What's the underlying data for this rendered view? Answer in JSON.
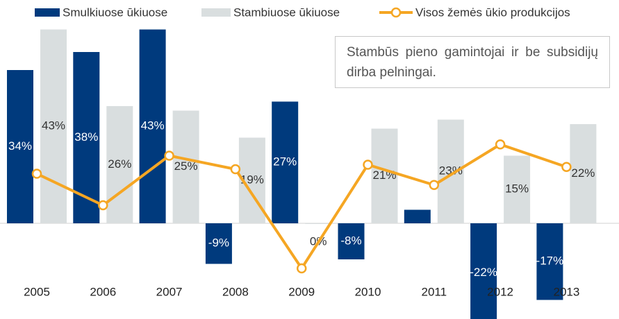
{
  "chart_data": {
    "type": "bar-line",
    "annotation": "Stambūs pieno gamintojai ir be subsidijų dirba pelningai.",
    "categories": [
      "2005",
      "2006",
      "2007",
      "2008",
      "2009",
      "2010",
      "2011",
      "2012",
      "2013"
    ],
    "series": [
      {
        "name": "Smulkiuose ūkiuose",
        "type": "bar",
        "color": "#003a7d",
        "values": [
          34,
          38,
          43,
          -9,
          27,
          -8,
          3,
          -22,
          -17
        ],
        "value_labels": [
          "34%",
          "38%",
          "43%",
          "-9%",
          "27%",
          "-8%",
          null,
          "-22%",
          "-17%"
        ]
      },
      {
        "name": "Stambiuose ūkiuose",
        "type": "bar",
        "color": "#d9dedf",
        "values": [
          43,
          26,
          25,
          19,
          0,
          21,
          23,
          15,
          22
        ],
        "value_labels": [
          "43%",
          "26%",
          "25%",
          "19%",
          "0%",
          "21%",
          "23%",
          "15%",
          "22%"
        ]
      },
      {
        "name": "Visos žemės ūkio produkcijos",
        "type": "line",
        "color": "#f5a623",
        "values": [
          11,
          4,
          15,
          12,
          -10,
          13,
          8.5,
          17.5,
          12.5
        ]
      }
    ]
  }
}
